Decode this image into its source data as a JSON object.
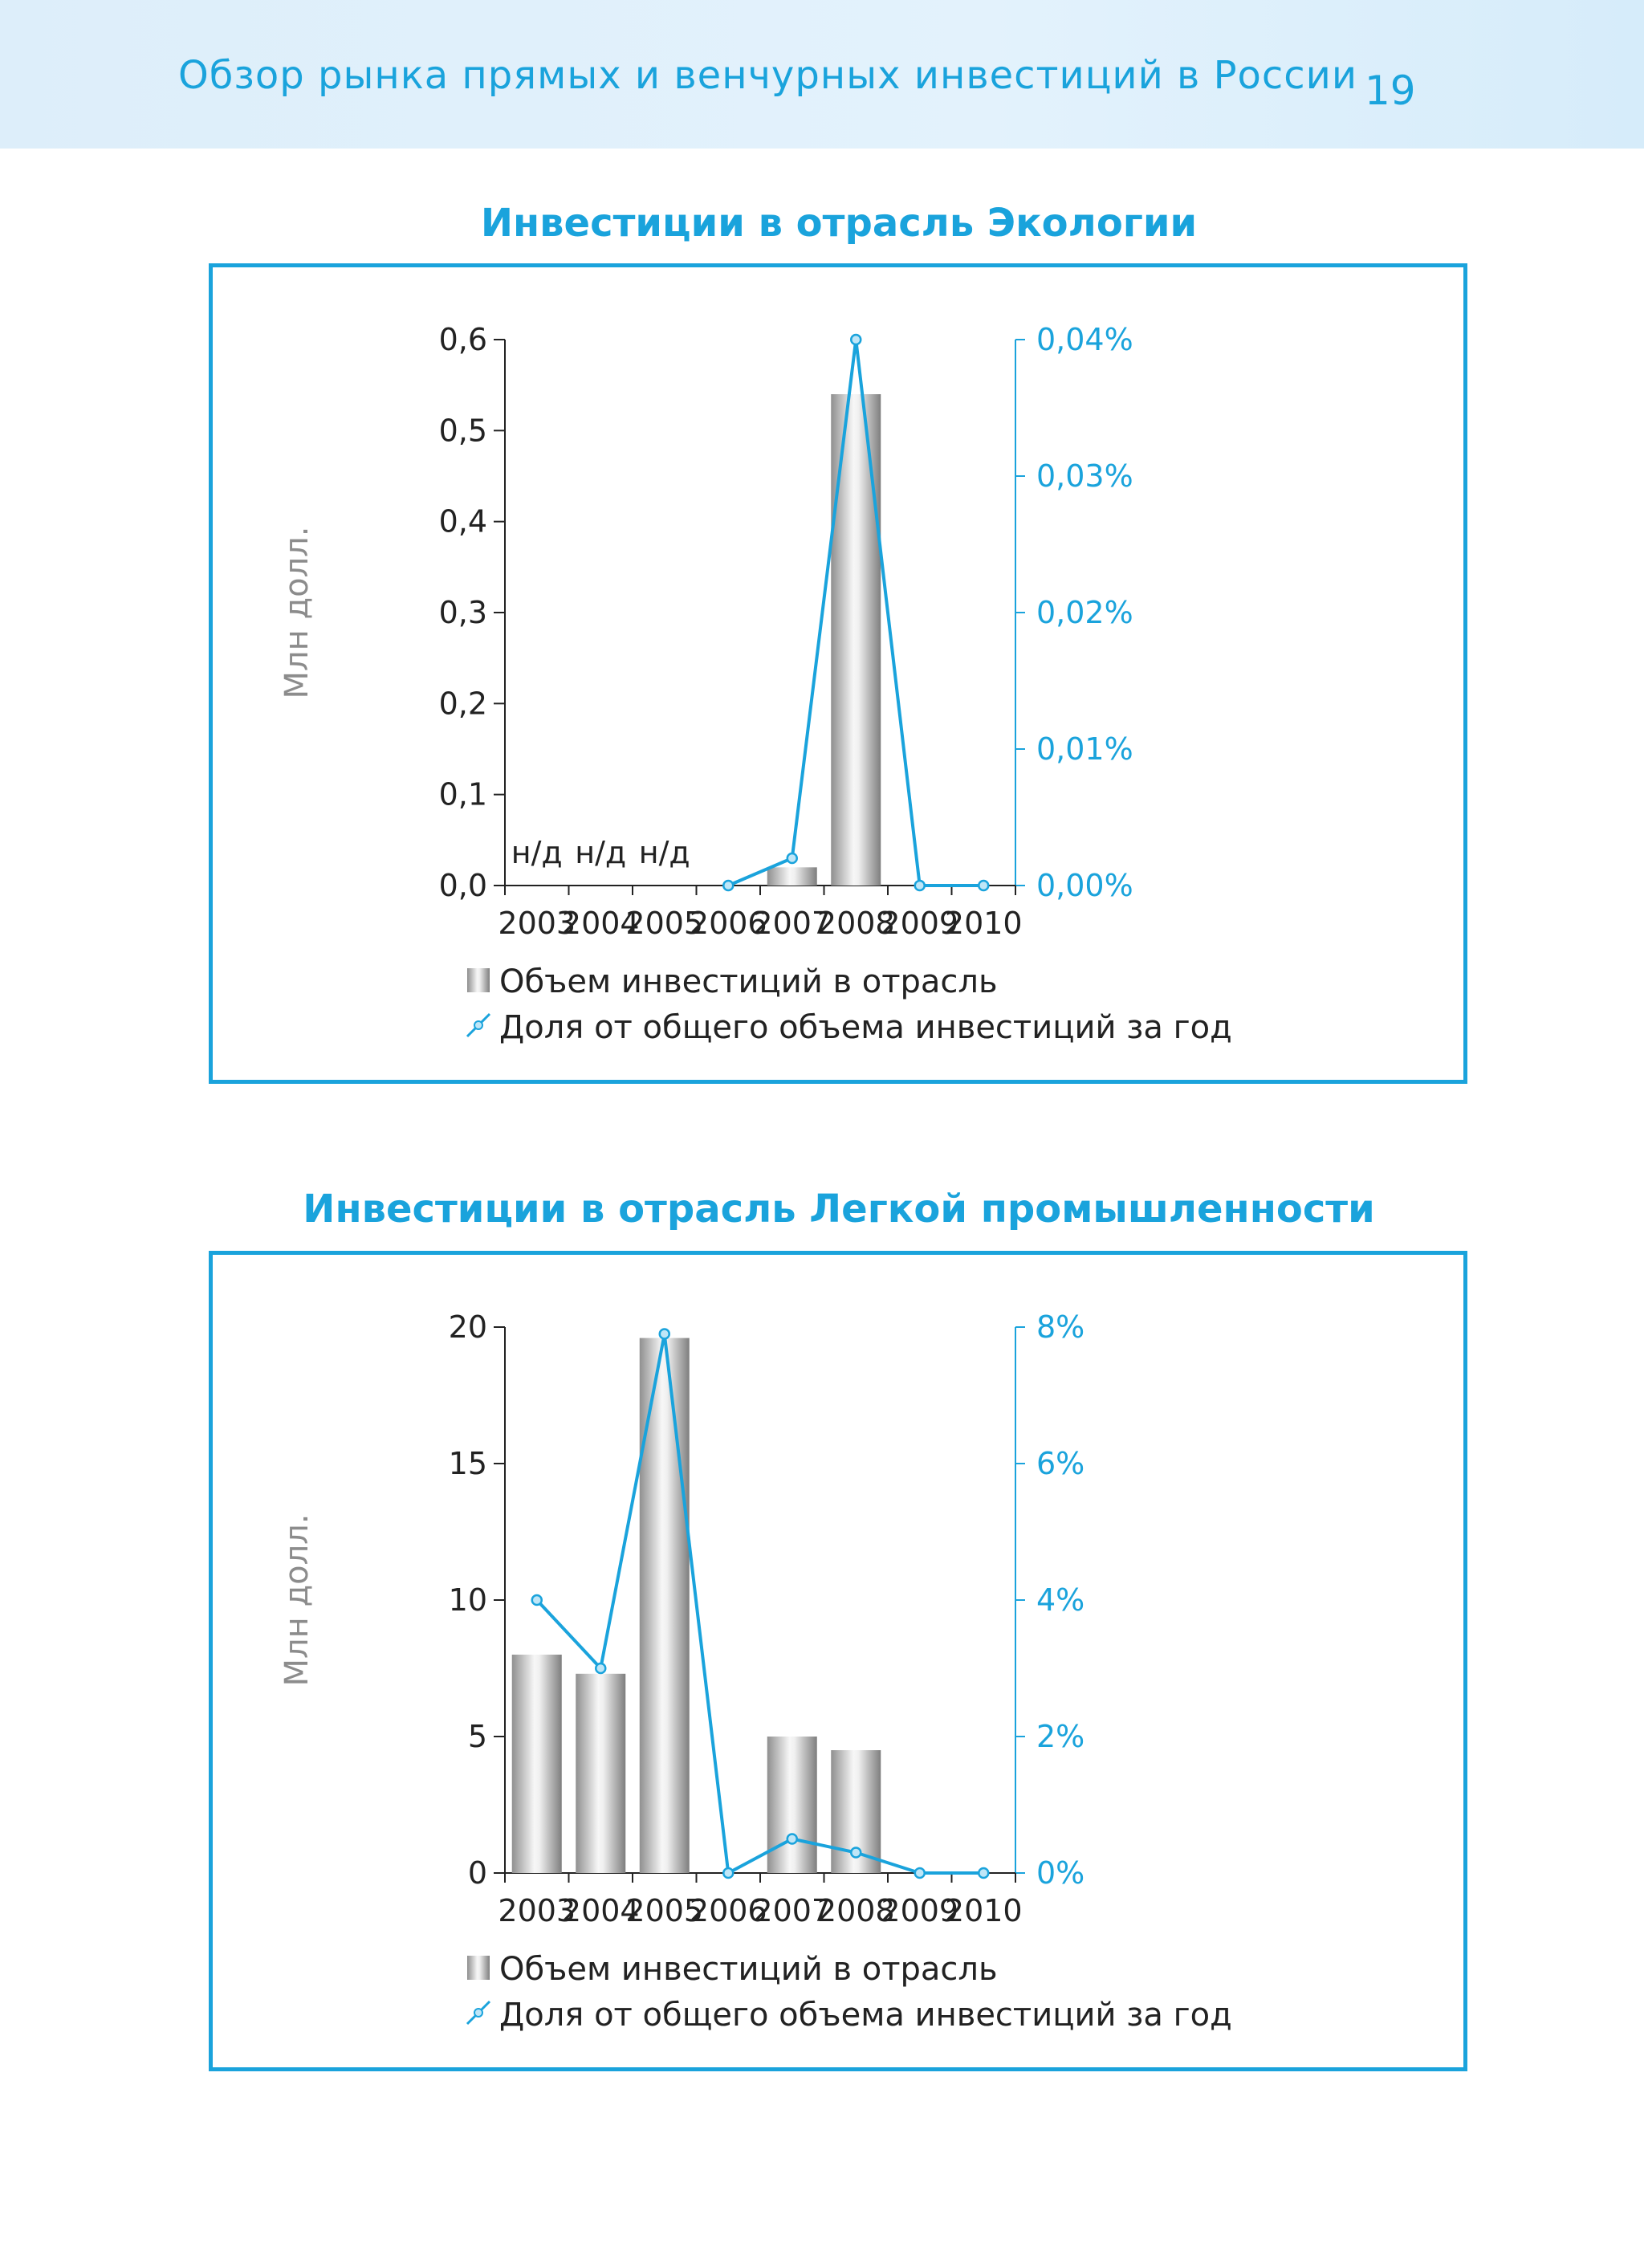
{
  "header": {
    "title": "Обзор рынка прямых и венчурных инвестиций в России",
    "page_number": "19"
  },
  "colors": {
    "accent": "#1aa3dc",
    "line": "#1aa3dc",
    "bar_light": "#f4f4f4",
    "bar_dark": "#8a8a8a"
  },
  "chart_data": [
    {
      "type": "bar",
      "title": "Инвестиции в отрасль Экологии",
      "ylabel": "Млн долл.",
      "xlabel": "",
      "categories": [
        "2003",
        "2004",
        "2005",
        "2006",
        "2007",
        "2008",
        "2009",
        "2010"
      ],
      "ylim": [
        0,
        0.6
      ],
      "y_ticks": [
        "0,0",
        "0,1",
        "0,2",
        "0,3",
        "0,4",
        "0,5",
        "0,6"
      ],
      "y2lim": [
        0,
        0.04
      ],
      "y2_ticks": [
        "0,00%",
        "0,01%",
        "0,02%",
        "0,03%",
        "0,04%"
      ],
      "no_data_label": "н/д",
      "series": [
        {
          "name": "Объем инвестиций в отрасль",
          "type": "bar",
          "axis": "left",
          "values": [
            null,
            null,
            null,
            0,
            0.02,
            0.54,
            0,
            0
          ]
        },
        {
          "name": "Доля от общего объема инвестиций за год",
          "type": "line",
          "axis": "right",
          "values": [
            null,
            null,
            null,
            0,
            0.002,
            0.04,
            0,
            0
          ]
        }
      ],
      "legend": [
        "Объем инвестиций в отрасль",
        "Доля от общего объема инвестиций за год"
      ],
      "legend_position": "bottom-left"
    },
    {
      "type": "bar",
      "title": "Инвестиции в отрасль Легкой промышленности",
      "ylabel": "Млн долл.",
      "xlabel": "",
      "categories": [
        "2003",
        "2004",
        "2005",
        "2006",
        "2007",
        "2008",
        "2009",
        "2010"
      ],
      "ylim": [
        0,
        20
      ],
      "y_ticks": [
        "0",
        "5",
        "10",
        "15",
        "20"
      ],
      "y2lim": [
        0,
        8
      ],
      "y2_ticks": [
        "0%",
        "2%",
        "4%",
        "6%",
        "8%"
      ],
      "no_data_label": "",
      "series": [
        {
          "name": "Объем инвестиций в отрасль",
          "type": "bar",
          "axis": "left",
          "values": [
            8,
            7.3,
            19.6,
            0,
            5,
            4.5,
            0,
            0
          ]
        },
        {
          "name": "Доля от общего объема инвестиций за год",
          "type": "line",
          "axis": "right",
          "values": [
            4,
            3,
            7.9,
            0,
            0.5,
            0.3,
            0,
            0
          ]
        }
      ],
      "legend": [
        "Объем инвестиций в отрасль",
        "Доля от общего объема инвестиций за год"
      ],
      "legend_position": "bottom-left"
    }
  ]
}
